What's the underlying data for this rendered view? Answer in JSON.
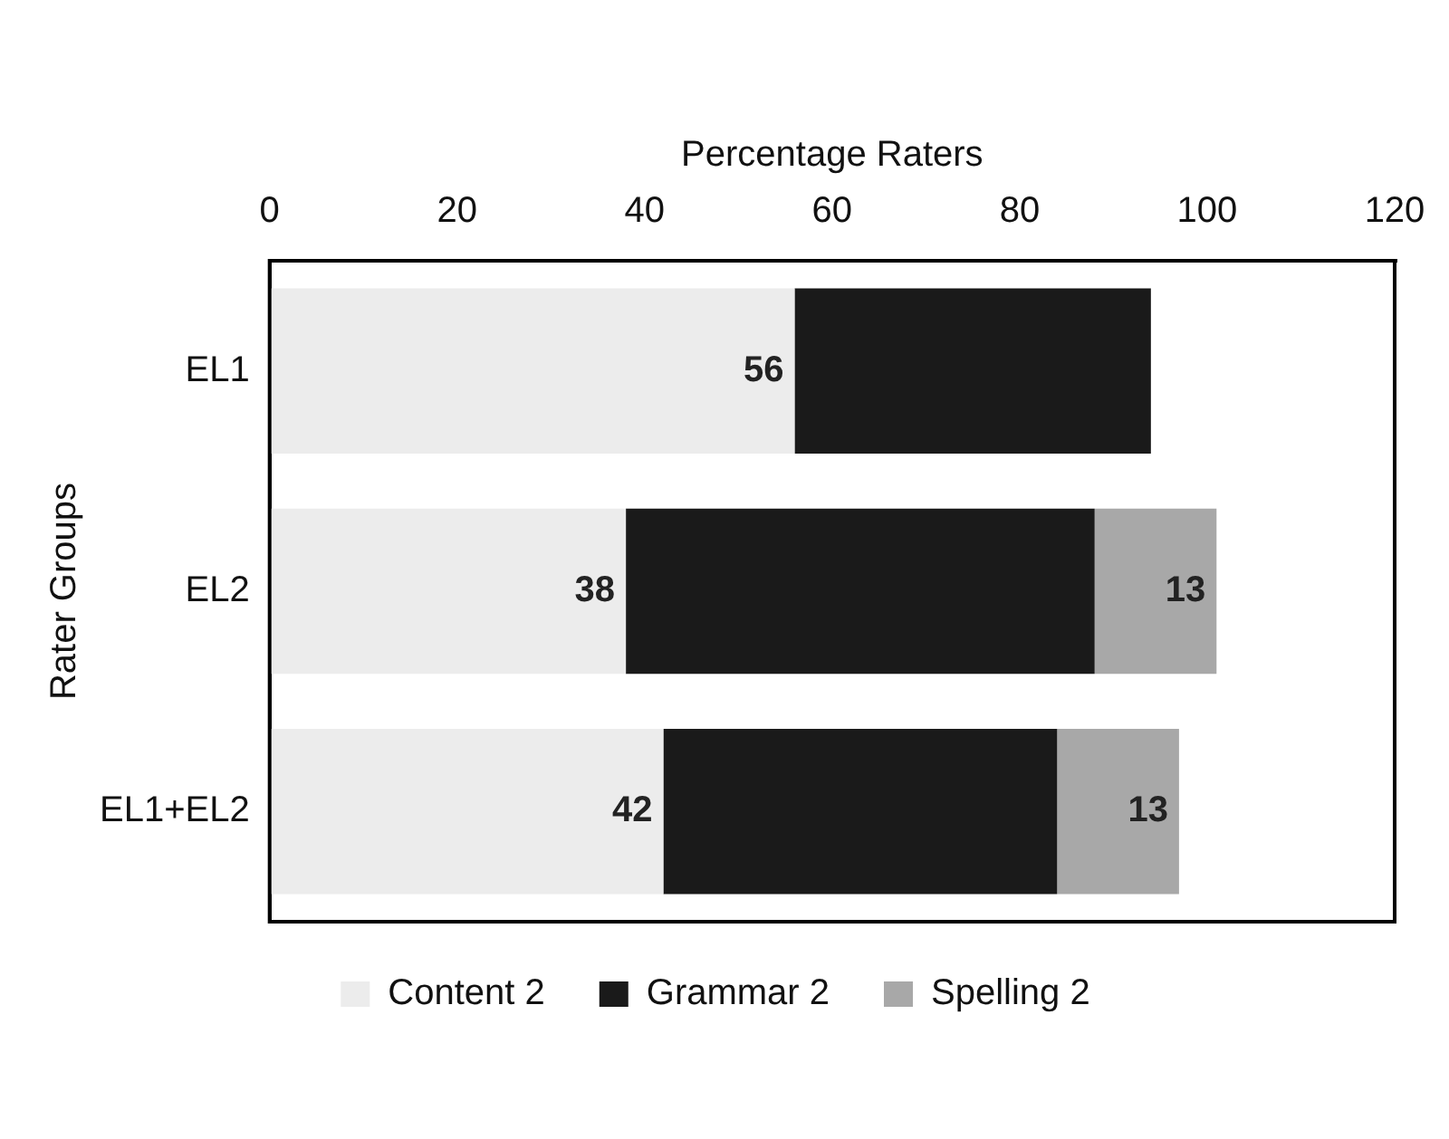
{
  "chart_data": {
    "type": "bar",
    "orientation": "horizontal",
    "stacked": true,
    "xlabel": "Percentage Raters",
    "ylabel": "Rater Groups",
    "categories": [
      "EL1",
      "EL2",
      "EL1+EL2"
    ],
    "series": [
      {
        "name": "Content 2",
        "color": "#ececec",
        "values": [
          56,
          38,
          42
        ],
        "value_labels": [
          "56",
          "38",
          "42"
        ]
      },
      {
        "name": "Grammar 2",
        "color": "#1a1a1a",
        "values": [
          38,
          50,
          42
        ]
      },
      {
        "name": "Spelling 2",
        "color": "#a8a8a8",
        "values": [
          null,
          13,
          13
        ],
        "value_labels": [
          null,
          "13",
          "13"
        ]
      }
    ],
    "xlim": [
      0,
      120
    ],
    "xticks": [
      0,
      20,
      40,
      60,
      80,
      100,
      120
    ],
    "grid": false,
    "legend": "bottom"
  }
}
